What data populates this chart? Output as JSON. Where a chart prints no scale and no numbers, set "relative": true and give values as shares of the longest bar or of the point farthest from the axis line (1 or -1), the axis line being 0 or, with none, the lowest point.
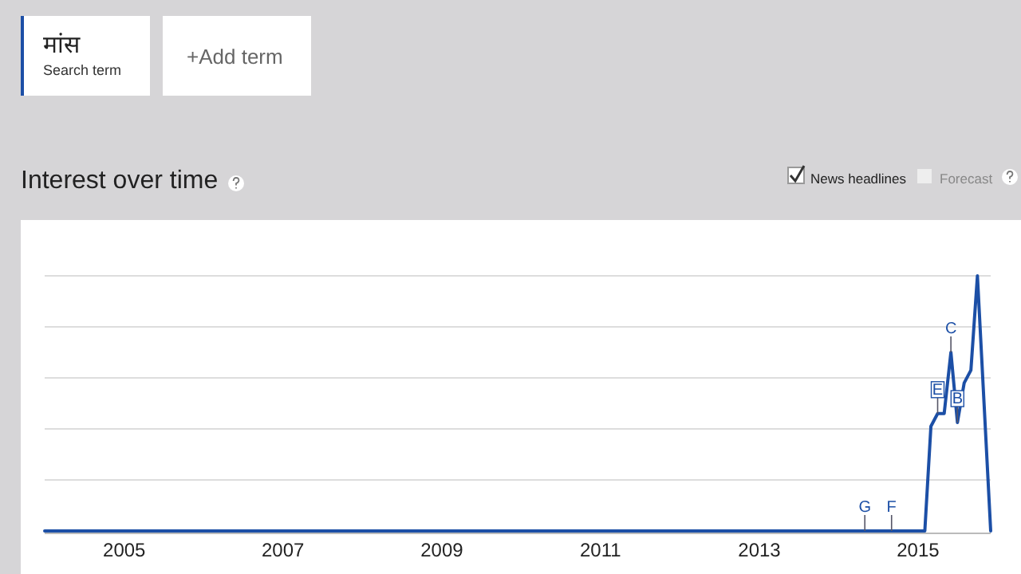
{
  "chart_data": {
    "type": "line",
    "title": "Interest over time",
    "relative": true,
    "grid": "y",
    "legend": "top left",
    "marker": "none",
    "line_style": "solid",
    "xlim": [
      "2004-01",
      "2015-12"
    ],
    "xticks": [
      {
        "value": "2005-01",
        "label": "2005"
      },
      {
        "value": "2007-01",
        "label": "2007"
      },
      {
        "value": "2009-01",
        "label": "2009"
      },
      {
        "value": "2011-01",
        "label": "2011"
      },
      {
        "value": "2013-01",
        "label": "2013"
      },
      {
        "value": "2015-01",
        "label": "2015"
      }
    ],
    "series": [
      {
        "name": "मांस",
        "color": "#1c4fa6",
        "x": [
          "2004-01",
          "2015-02",
          "2015-03",
          "2015-04",
          "2015-05",
          "2015-06",
          "2015-07",
          "2015-08",
          "2015-09",
          "2015-10",
          "2015-12"
        ],
        "values": [
          0,
          0,
          0.41,
          0.46,
          0.46,
          0.7,
          0.425,
          0.58,
          0.63,
          1,
          0
        ]
      }
    ],
    "annotations": [
      "Search term",
      "+Add term",
      "News headlines",
      "Forecast",
      {
        "text": "G",
        "x": "2014-05",
        "y": 0
      },
      {
        "text": "F",
        "x": "2014-09",
        "y": 0
      },
      {
        "text": "E",
        "x": "2015-04",
        "y": 0.46
      },
      {
        "text": "C",
        "x": "2015-06",
        "y": 0.7
      },
      {
        "text": "B",
        "x": "2015-07",
        "y": 0.425
      }
    ]
  }
}
